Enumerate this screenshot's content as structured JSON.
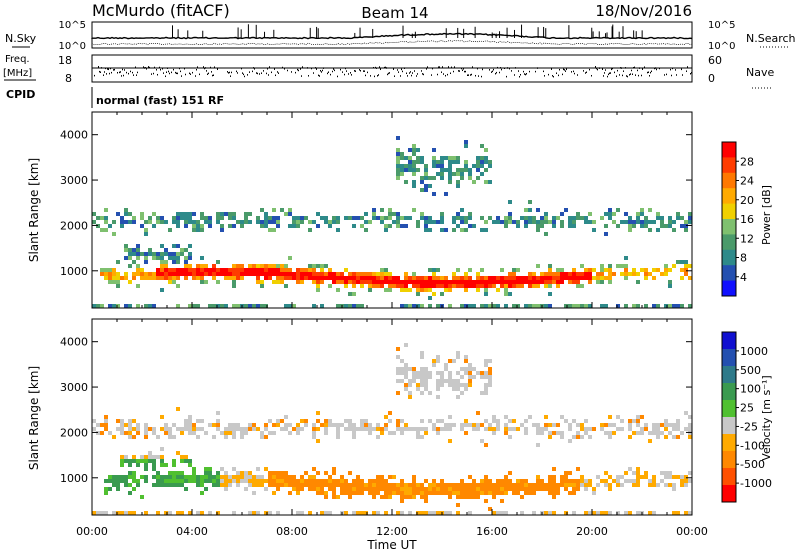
{
  "header": {
    "title": "McMurdo (fitACF)",
    "beam": "Beam 14",
    "date": "18/Nov/2016"
  },
  "status_panels": {
    "nsky_label": "N.Sky",
    "nsearch_label": "N.Search",
    "noise_ticks": [
      "10^5",
      "10^0"
    ],
    "freq_label_1": "Freq.",
    "freq_label_2": "[MHz]",
    "freq_ticks": [
      "18",
      "8"
    ],
    "nave_label": "Nave",
    "nave_ticks": [
      "60",
      "0"
    ],
    "cpid_label": "CPID",
    "cpid_text": "normal (fast) 151 RF"
  },
  "power_colorbar": {
    "label": "Power [dB]",
    "ticks": [
      "28",
      "24",
      "20",
      "16",
      "12",
      "8",
      "4"
    ],
    "colors": [
      "#ff0000",
      "#ff3c00",
      "#ff7800",
      "#ffaa00",
      "#f0d000",
      "#7fc06f",
      "#4a9a6a",
      "#2e8a8a",
      "#2450b0",
      "#1010ff"
    ]
  },
  "velocity_colorbar": {
    "label": "Velocity [m s⁻¹]",
    "ticks": [
      "1000",
      "500",
      "100",
      "25",
      "-25",
      "-100",
      "-500",
      "-1000"
    ],
    "colors": [
      "#1010d0",
      "#2450b0",
      "#2e7a8a",
      "#3a9a50",
      "#50c030",
      "#c8c8c8",
      "#ffaa00",
      "#ff8800",
      "#ff5000",
      "#ff0000"
    ]
  },
  "chart_data": [
    {
      "type": "heatmap",
      "title": "",
      "xlabel": "",
      "ylabel": "Slant Range [km]",
      "xlim": [
        "00:00",
        "00:00"
      ],
      "ylim": [
        180,
        4500
      ],
      "x_ticks": [
        "00:00",
        "04:00",
        "08:00",
        "12:00",
        "16:00",
        "20:00",
        "00:00"
      ],
      "y_ticks": [
        "1000",
        "2000",
        "3000",
        "4000"
      ],
      "variable": "Power [dB]",
      "color_scale": [
        0,
        30
      ]
    },
    {
      "type": "heatmap",
      "title": "",
      "xlabel": "Time UT",
      "ylabel": "Slant Range [km]",
      "xlim": [
        "00:00",
        "00:00"
      ],
      "ylim": [
        180,
        4500
      ],
      "x_ticks": [
        "00:00",
        "04:00",
        "08:00",
        "12:00",
        "16:00",
        "20:00",
        "00:00"
      ],
      "y_ticks": [
        "1000",
        "2000",
        "3000",
        "4000"
      ],
      "variable": "Velocity [m s-1]",
      "color_scale": [
        -1000,
        1000
      ]
    }
  ]
}
